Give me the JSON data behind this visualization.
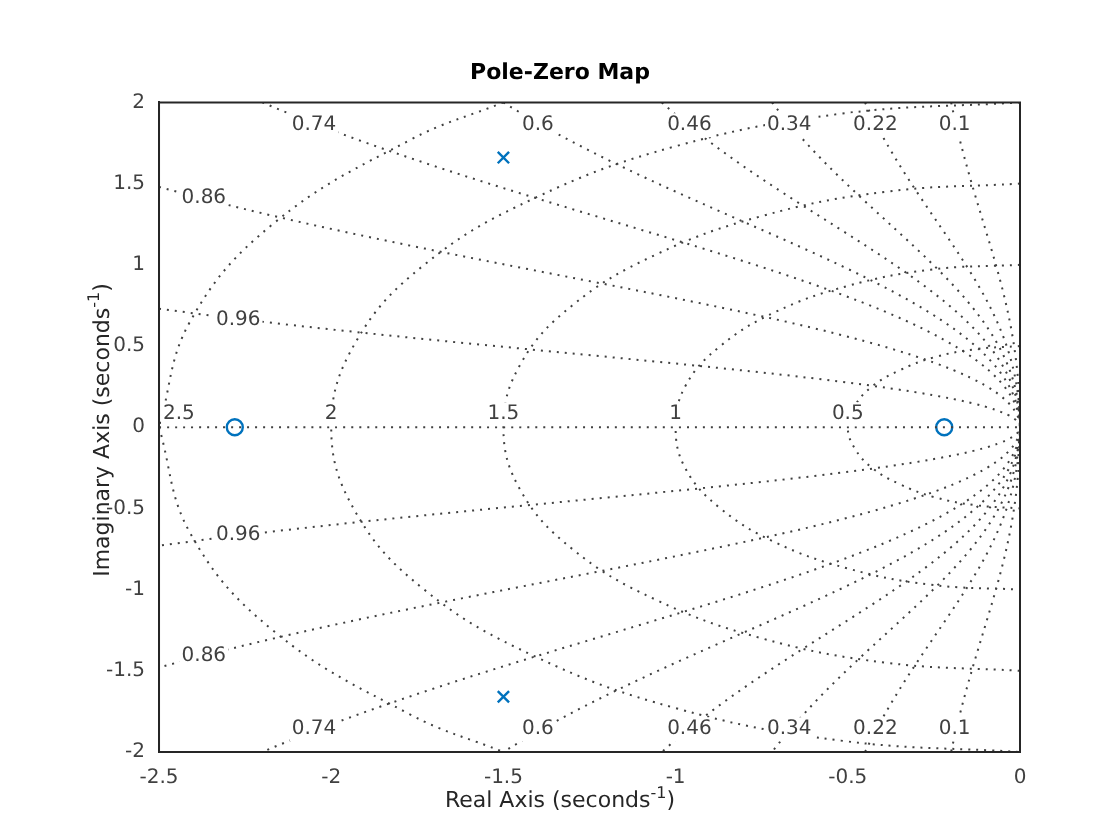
{
  "chart_data": {
    "type": "scatter",
    "title": "Pole-Zero Map",
    "xlabel": "Real Axis (seconds$^{-1}$)",
    "ylabel": "Imaginary Axis (seconds$^{-1}$)",
    "xlim": [
      -2.5,
      0
    ],
    "xticks": [
      -2.5,
      -2,
      -1.5,
      -1,
      -0.5,
      0
    ],
    "ylim": [
      -2,
      2
    ],
    "yticks": [
      -2,
      -1.5,
      -1,
      -0.5,
      0,
      0.5,
      1,
      1.5,
      2
    ],
    "grid": false,
    "legend": false,
    "series": [
      {
        "type": "line",
        "color": "#404040",
        "line_style": "dotted",
        "marker": "none",
        "x": [
          -0.2,
          0,
          -0.2
        ],
        "values": [
          2,
          0,
          -2
        ]
      },
      {
        "type": "line",
        "color": "#404040",
        "line_style": "dotted",
        "marker": "none",
        "x": [
          -0.45,
          0,
          -0.45
        ],
        "values": [
          2,
          0,
          -2
        ]
      },
      {
        "type": "line",
        "color": "#404040",
        "line_style": "dotted",
        "marker": "none",
        "x": [
          -0.72,
          0,
          -0.72
        ],
        "values": [
          2,
          0,
          -2
        ]
      },
      {
        "type": "line",
        "color": "#404040",
        "line_style": "dotted",
        "marker": "none",
        "x": [
          -1.04,
          0,
          -1.04
        ],
        "values": [
          2,
          0,
          -2
        ]
      },
      {
        "type": "line",
        "color": "#404040",
        "line_style": "dotted",
        "marker": "none",
        "x": [
          -1.5,
          0,
          -1.5
        ],
        "values": [
          2,
          0,
          -2
        ]
      },
      {
        "type": "line",
        "color": "#404040",
        "line_style": "dotted",
        "marker": "none",
        "x": [
          -2.2,
          0,
          -2.2
        ],
        "values": [
          2,
          0,
          -2
        ]
      },
      {
        "type": "line",
        "color": "#404040",
        "line_style": "dotted",
        "marker": "none",
        "x": [
          -2.5,
          0,
          -2.5
        ],
        "values": [
          1.48,
          0,
          -1.48
        ]
      },
      {
        "type": "line",
        "color": "#404040",
        "line_style": "dotted",
        "marker": "none",
        "x": [
          -2.5,
          0,
          -2.5
        ],
        "values": [
          0.73,
          0,
          -0.73
        ]
      },
      {
        "type": "line",
        "color": "#404040",
        "line_style": "dotted",
        "marker": "none",
        "x": [
          -2.5,
          0
        ],
        "values": [
          0,
          0
        ]
      },
      {
        "type": "line",
        "color": "#404040",
        "line_style": "dotted",
        "marker": "none",
        "x": [
          0,
          -0.13,
          -0.25,
          -0.35,
          -0.43,
          -0.48,
          -0.5,
          -0.48,
          -0.43,
          -0.35,
          -0.25,
          -0.13,
          0
        ],
        "values": [
          0.5,
          0.48,
          0.43,
          0.35,
          0.25,
          0.13,
          0,
          -0.13,
          -0.25,
          -0.35,
          -0.43,
          -0.48,
          -0.5
        ]
      },
      {
        "type": "line",
        "color": "#404040",
        "line_style": "dotted",
        "marker": "none",
        "x": [
          0,
          -0.26,
          -0.5,
          -0.71,
          -0.87,
          -0.97,
          -1,
          -0.97,
          -0.87,
          -0.71,
          -0.5,
          -0.26,
          0
        ],
        "values": [
          1,
          0.97,
          0.87,
          0.71,
          0.5,
          0.26,
          0,
          -0.26,
          -0.5,
          -0.71,
          -0.87,
          -0.97,
          -1
        ]
      },
      {
        "type": "line",
        "color": "#404040",
        "line_style": "dotted",
        "marker": "none",
        "x": [
          0,
          -0.39,
          -0.75,
          -1.06,
          -1.3,
          -1.45,
          -1.5,
          -1.45,
          -1.3,
          -1.06,
          -0.75,
          -0.39,
          0
        ],
        "values": [
          1.5,
          1.45,
          1.3,
          1.06,
          0.75,
          0.39,
          0,
          -0.39,
          -0.75,
          -1.06,
          -1.3,
          -1.45,
          -1.5
        ]
      },
      {
        "type": "line",
        "color": "#404040",
        "line_style": "dotted",
        "marker": "none",
        "x": [
          0,
          -0.52,
          -1,
          -1.41,
          -1.73,
          -1.93,
          -2,
          -1.93,
          -1.73,
          -1.41,
          -1,
          -0.52,
          0
        ],
        "values": [
          2,
          1.93,
          1.73,
          1.41,
          1,
          0.52,
          0,
          -0.52,
          -1,
          -1.41,
          -1.73,
          -1.93,
          -2
        ]
      },
      {
        "type": "line",
        "color": "#404040",
        "line_style": "dotted",
        "marker": "none",
        "x": [
          -1.5,
          -1.77,
          -2.17,
          -2.41,
          -2.5
        ],
        "values": [
          2,
          1.77,
          1.25,
          0.65,
          0
        ]
      },
      {
        "type": "line",
        "color": "#404040",
        "line_style": "dotted",
        "marker": "none",
        "x": [
          -2.5,
          -2.41,
          -2.17,
          -1.77,
          -1.5
        ],
        "values": [
          0,
          -0.65,
          -1.25,
          -1.77,
          -2
        ]
      },
      {
        "color": "#0072bd",
        "marker": "cross",
        "x": [
          -1.5,
          -1.5
        ],
        "values": [
          1.66,
          -1.66
        ]
      },
      {
        "color": "#0072bd",
        "marker": "circle",
        "x": [
          -2.28,
          -0.22
        ],
        "values": [
          0,
          0
        ]
      }
    ],
    "annotations": [
      {
        "text": "0.74",
        "x": -2.05,
        "y": 1.86
      },
      {
        "text": "0.6",
        "x": -1.4,
        "y": 1.86
      },
      {
        "text": "0.46",
        "x": -0.96,
        "y": 1.86
      },
      {
        "text": "0.34",
        "x": -0.67,
        "y": 1.86
      },
      {
        "text": "0.22",
        "x": -0.42,
        "y": 1.86
      },
      {
        "text": "0.1",
        "x": -0.19,
        "y": 1.86
      },
      {
        "text": "0.86",
        "x": -2.37,
        "y": 1.41
      },
      {
        "text": "0.96",
        "x": -2.27,
        "y": 0.66
      },
      {
        "text": "0.96",
        "x": -2.27,
        "y": -0.66
      },
      {
        "text": "0.86",
        "x": -2.37,
        "y": -1.41
      },
      {
        "text": "0.74",
        "x": -2.05,
        "y": -1.86
      },
      {
        "text": "0.6",
        "x": -1.4,
        "y": -1.86
      },
      {
        "text": "0.46",
        "x": -0.96,
        "y": -1.86
      },
      {
        "text": "0.34",
        "x": -0.67,
        "y": -1.86
      },
      {
        "text": "0.22",
        "x": -0.42,
        "y": -1.86
      },
      {
        "text": "0.1",
        "x": -0.19,
        "y": -1.86
      },
      {
        "text": "2.5",
        "x": -2.5,
        "y": 0.08
      },
      {
        "text": "2",
        "x": -2.0,
        "y": 0.08
      },
      {
        "text": "1.5",
        "x": -1.5,
        "y": 0.08
      },
      {
        "text": "1",
        "x": -1.0,
        "y": 0.08
      },
      {
        "text": "0.5",
        "x": -0.5,
        "y": 0.08
      }
    ]
  }
}
